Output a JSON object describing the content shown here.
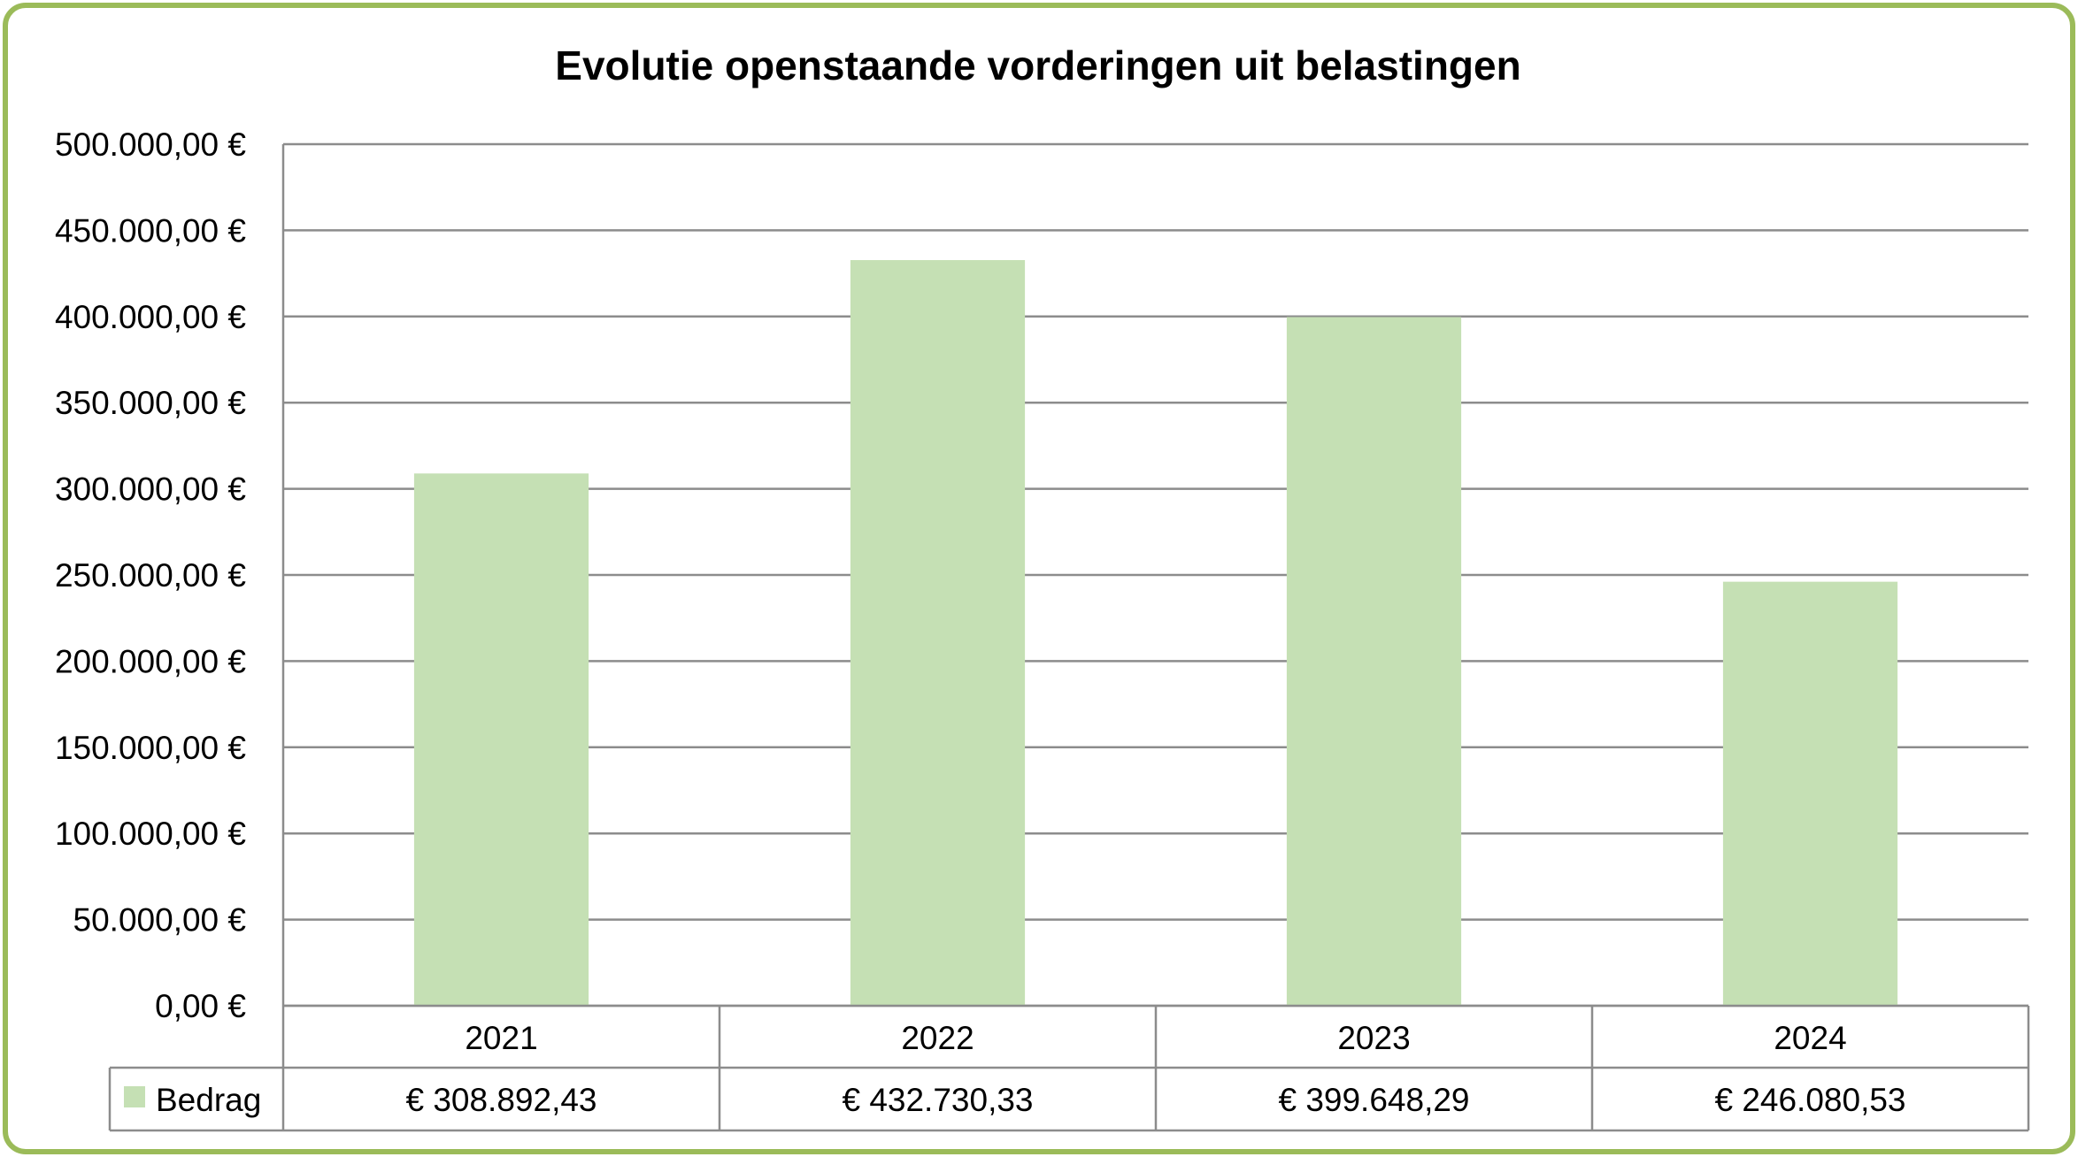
{
  "chart_data": {
    "type": "bar",
    "title": "Evolutie openstaande vorderingen uit belastingen",
    "categories": [
      "2021",
      "2022",
      "2023",
      "2024"
    ],
    "series": [
      {
        "name": "Bedrag",
        "values": [
          308892.43,
          432730.33,
          399648.29,
          246080.53
        ],
        "color": "#c5e0b4"
      }
    ],
    "ylim": [
      0,
      500000
    ],
    "ytick_step": 50000,
    "ytick_labels": [
      "0,00 €",
      "50.000,00 €",
      "100.000,00 €",
      "150.000,00 €",
      "200.000,00 €",
      "250.000,00 €",
      "300.000,00 €",
      "350.000,00 €",
      "400.000,00 €",
      "450.000,00 €",
      "500.000,00 €"
    ],
    "data_table": {
      "legend_label": "Bedrag",
      "cells": [
        "€ 308.892,43",
        "€ 432.730,33",
        "€ 399.648,29",
        "€ 246.080,53"
      ]
    },
    "grid": true,
    "legend": "data-table",
    "border_color": "#9bbb59",
    "gridline_color": "#8c8c8c"
  }
}
